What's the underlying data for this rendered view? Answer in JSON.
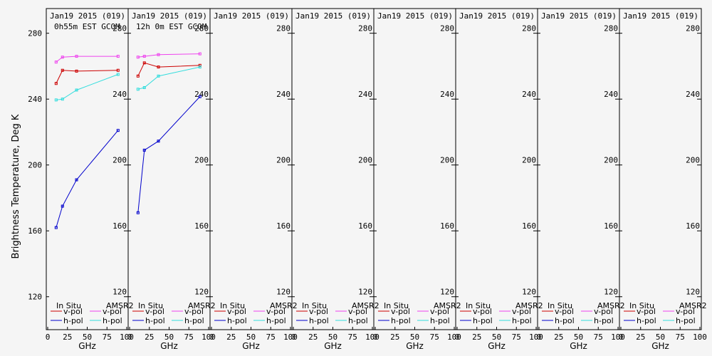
{
  "chart_data": {
    "type": "line",
    "ylabel": "Brightness Temperature, Deg K",
    "xlabel": "GHz",
    "ylim": [
      100,
      295
    ],
    "yticks": [
      120,
      160,
      200,
      240,
      280
    ],
    "xlim": [
      0,
      100
    ],
    "xticks": [
      0,
      25,
      50,
      75,
      100
    ],
    "legend": {
      "group_left": "In Situ",
      "group_right": "AMSR2",
      "vpol": "v-pol",
      "hpol": "h-pol"
    },
    "colors": {
      "insitu_v": "#cc0000",
      "insitu_h": "#0000cc",
      "amsr2_v": "#ee44ee",
      "amsr2_h": "#33dddd"
    },
    "panels": [
      {
        "title": "Jan19 2015 (019)",
        "subtitle": "0h55m EST GCOM",
        "series": [
          {
            "name": "In Situ v-pol",
            "key": "insitu_v",
            "x": [
              10.65,
              18.7,
              36.5,
              89
            ],
            "y": [
              249.5,
              257.5,
              257.0,
              257.5
            ]
          },
          {
            "name": "In Situ h-pol",
            "key": "insitu_h",
            "x": [
              10.65,
              18.7,
              36.5,
              89
            ],
            "y": [
              162.0,
              175.0,
              191.0,
              221.0
            ]
          },
          {
            "name": "AMSR2 v-pol",
            "key": "amsr2_v",
            "x": [
              10.65,
              18.7,
              36.5,
              89
            ],
            "y": [
              262.5,
              265.5,
              266.0,
              266.0
            ]
          },
          {
            "name": "AMSR2 h-pol",
            "key": "amsr2_h",
            "x": [
              10.65,
              18.7,
              36.5,
              89
            ],
            "y": [
              239.5,
              240.0,
              245.5,
              255.0
            ]
          }
        ]
      },
      {
        "title": "Jan19 2015 (019)",
        "subtitle": "12h 0m EST GCOM",
        "series": [
          {
            "name": "In Situ v-pol",
            "key": "insitu_v",
            "x": [
              10.65,
              18.7,
              36.5,
              89
            ],
            "y": [
              254.0,
              262.0,
              259.5,
              260.5
            ]
          },
          {
            "name": "In Situ h-pol",
            "key": "insitu_h",
            "x": [
              10.65,
              18.7,
              36.5,
              89
            ],
            "y": [
              171.0,
              209.0,
              214.5,
              241.5
            ]
          },
          {
            "name": "AMSR2 v-pol",
            "key": "amsr2_v",
            "x": [
              10.65,
              18.7,
              36.5,
              89
            ],
            "y": [
              265.5,
              266.0,
              267.0,
              267.5
            ]
          },
          {
            "name": "AMSR2 h-pol",
            "key": "amsr2_h",
            "x": [
              10.65,
              18.7,
              36.5,
              89
            ],
            "y": [
              246.0,
              247.0,
              254.0,
              259.5
            ]
          }
        ]
      },
      {
        "title": "Jan19 2015 (019)",
        "subtitle": "",
        "series": []
      },
      {
        "title": "Jan19 2015 (019)",
        "subtitle": "",
        "series": []
      },
      {
        "title": "Jan19 2015 (019)",
        "subtitle": "",
        "series": []
      },
      {
        "title": "Jan19 2015 (019)",
        "subtitle": "",
        "series": []
      },
      {
        "title": "Jan19 2015 (019)",
        "subtitle": "",
        "series": []
      },
      {
        "title": "Jan19 2015 (019)",
        "subtitle": "",
        "series": []
      }
    ]
  }
}
